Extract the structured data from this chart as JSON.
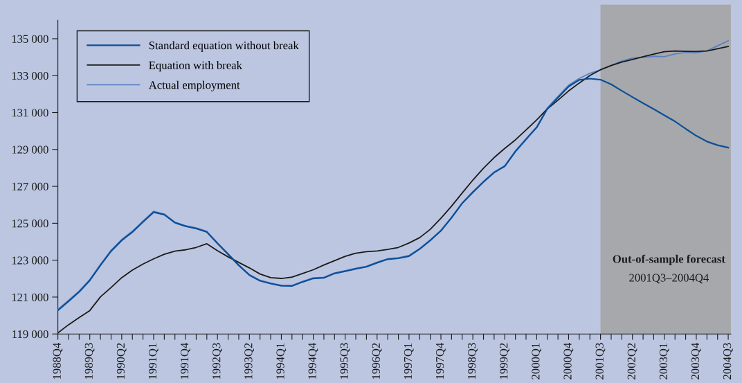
{
  "chart_data": {
    "type": "line",
    "categories": [
      "1988Q4",
      null,
      null,
      "1989Q3",
      null,
      null,
      "1990Q2",
      null,
      null,
      "1991Q1",
      null,
      null,
      "1991Q4",
      null,
      null,
      "1992Q3",
      null,
      null,
      "1993Q2",
      null,
      null,
      "1994Q1",
      null,
      null,
      "1994Q4",
      null,
      null,
      "1995Q3",
      null,
      null,
      "1996Q2",
      null,
      null,
      "1997Q1",
      null,
      null,
      "1997Q4",
      null,
      null,
      "1998Q3",
      null,
      null,
      "1999Q2",
      null,
      null,
      "2000Q1",
      null,
      null,
      "2000Q4",
      null,
      null,
      "2001Q3",
      null,
      null,
      "2002Q2",
      null,
      null,
      "2003Q1",
      null,
      null,
      "2003Q4",
      null,
      null,
      "2004Q3"
    ],
    "series": [
      {
        "name": "Standard equation without break",
        "color": "#0b4f98",
        "values": [
          120280,
          120770,
          121280,
          121900,
          122720,
          123490,
          124070,
          124520,
          125070,
          125600,
          125470,
          125030,
          124840,
          124720,
          124530,
          123910,
          123320,
          122720,
          122190,
          121880,
          121730,
          121610,
          121600,
          121820,
          122010,
          122040,
          122280,
          122400,
          122530,
          122640,
          122860,
          123050,
          123100,
          123220,
          123600,
          124070,
          124590,
          125300,
          126080,
          126680,
          127240,
          127750,
          128090,
          128890,
          129550,
          130190,
          131200,
          131810,
          132410,
          132770,
          132840,
          132780,
          132530,
          132180,
          131840,
          131510,
          131190,
          130850,
          130520,
          130120,
          129740,
          129430,
          129230,
          129100
        ]
      },
      {
        "name": "Equation with break",
        "color": "#1a1a1a",
        "values": [
          119060,
          119500,
          119890,
          120270,
          121010,
          121520,
          122050,
          122460,
          122790,
          123070,
          123320,
          123490,
          123560,
          123690,
          123890,
          123510,
          123180,
          122880,
          122580,
          122250,
          122050,
          122010,
          122080,
          122280,
          122480,
          122740,
          122970,
          123210,
          123380,
          123460,
          123500,
          123580,
          123690,
          123930,
          124220,
          124670,
          125270,
          125930,
          126640,
          127340,
          127980,
          128560,
          129060,
          129520,
          130060,
          130600,
          131200,
          131670,
          132170,
          132600,
          133010,
          133320,
          133550,
          133740,
          133880,
          134030,
          134170,
          134300,
          134340,
          134320,
          134310,
          134340,
          134460,
          134580
        ]
      },
      {
        "name": "Actual employment",
        "color": "#5b80c2",
        "values": [
          120330,
          120820,
          121330,
          121950,
          122770,
          123540,
          124120,
          124570,
          125120,
          125650,
          125500,
          125060,
          124870,
          124750,
          124560,
          123940,
          123350,
          122750,
          122220,
          121910,
          121760,
          121640,
          121630,
          121850,
          122040,
          122070,
          122310,
          122430,
          122560,
          122670,
          122890,
          123080,
          123130,
          123250,
          123630,
          124100,
          124620,
          125330,
          126110,
          126710,
          127270,
          127780,
          128120,
          128920,
          129580,
          130220,
          131250,
          131880,
          132480,
          132850,
          133130,
          133310,
          133560,
          133790,
          133950,
          133990,
          134050,
          134030,
          134180,
          134260,
          134230,
          134350,
          134620,
          134890
        ]
      }
    ],
    "ylim": [
      119000,
      136000
    ],
    "yticks": [
      {
        "value": 119000,
        "label": "119 000"
      },
      {
        "value": 121000,
        "label": "121 000"
      },
      {
        "value": 123000,
        "label": "123 000"
      },
      {
        "value": 125000,
        "label": "125 000"
      },
      {
        "value": 127000,
        "label": "127 000"
      },
      {
        "value": 129000,
        "label": "129 000"
      },
      {
        "value": 131000,
        "label": "131 000"
      },
      {
        "value": 133000,
        "label": "133 000"
      },
      {
        "value": 135000,
        "label": "135 000"
      }
    ],
    "bands": [
      {
        "axis": "x",
        "from": "2001Q3",
        "to": "2004Q3",
        "color": "#a7a8ab"
      }
    ],
    "annotations": [
      "Out-of-sample forecast",
      "2001Q3–2004Q4"
    ],
    "legend": "top left",
    "grid": false,
    "marker": "none",
    "line_style": "solid"
  }
}
